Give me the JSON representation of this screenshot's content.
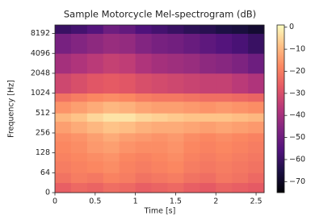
{
  "chart_data": {
    "type": "heatmap",
    "title": "Sample Motorcycle Mel-spectrogram (dB)",
    "x_label": "Time [s]",
    "y_label": "Frequency [Hz]",
    "cmap": "magma",
    "y_scale": "symlog",
    "y_linthresh": 64,
    "x_edges": [
      0,
      0.2,
      0.4,
      0.6,
      0.8,
      1.0,
      1.2,
      1.4,
      1.6,
      1.8,
      2.0,
      2.2,
      2.4,
      2.6
    ],
    "y_edges": [
      0,
      32,
      64,
      96,
      128,
      192,
      256,
      384,
      512,
      768,
      1024,
      2048,
      4096,
      8192,
      11025
    ],
    "values": [
      [
        -26,
        -24,
        -25,
        -23,
        -24,
        -26,
        -25,
        -24,
        -26,
        -27,
        -25,
        -26,
        -27
      ],
      [
        -22,
        -20,
        -21,
        -19,
        -20,
        -22,
        -21,
        -20,
        -22,
        -23,
        -21,
        -22,
        -24
      ],
      [
        -20,
        -19,
        -18,
        -17,
        -19,
        -20,
        -19,
        -18,
        -20,
        -21,
        -20,
        -21,
        -22
      ],
      [
        -19,
        -18,
        -17,
        -16,
        -18,
        -19,
        -18,
        -17,
        -19,
        -20,
        -19,
        -20,
        -21
      ],
      [
        -18,
        -17,
        -15,
        -14,
        -16,
        -17,
        -17,
        -16,
        -18,
        -19,
        -18,
        -19,
        -20
      ],
      [
        -17,
        -16,
        -14,
        -12,
        -14,
        -15,
        -16,
        -15,
        -17,
        -18,
        -17,
        -18,
        -19
      ],
      [
        -14,
        -12,
        -10,
        -8,
        -9,
        -11,
        -12,
        -12,
        -13,
        -14,
        -13,
        -14,
        -15
      ],
      [
        -10,
        -8,
        -5,
        -3,
        -3,
        -5,
        -6,
        -7,
        -8,
        -8,
        -8,
        -9,
        -10
      ],
      [
        -16,
        -14,
        -12,
        -10,
        -11,
        -13,
        -14,
        -14,
        -15,
        -16,
        -15,
        -16,
        -17
      ],
      [
        -22,
        -20,
        -18,
        -17,
        -18,
        -20,
        -21,
        -21,
        -22,
        -23,
        -23,
        -24,
        -25
      ],
      [
        -32,
        -30,
        -28,
        -27,
        -28,
        -30,
        -31,
        -32,
        -33,
        -34,
        -34,
        -36,
        -38
      ],
      [
        -40,
        -38,
        -36,
        -34,
        -35,
        -38,
        -40,
        -41,
        -42,
        -44,
        -45,
        -47,
        -50
      ],
      [
        -48,
        -46,
        -44,
        -42,
        -43,
        -46,
        -48,
        -49,
        -51,
        -53,
        -55,
        -57,
        -60
      ],
      [
        -60,
        -58,
        -55,
        -50,
        -52,
        -56,
        -58,
        -60,
        -62,
        -63,
        -65,
        -66,
        -68
      ]
    ],
    "xlim": [
      0,
      2.6
    ],
    "xticks": [
      0,
      0.5,
      1,
      1.5,
      2,
      2.5
    ],
    "ylim": [
      0,
      11025
    ],
    "yticks": [
      0,
      64,
      128,
      256,
      512,
      1024,
      2048,
      4096,
      8192
    ],
    "clim": [
      -75,
      1
    ],
    "cticks": [
      0,
      {
        "value": -10,
        "label": "−10"
      },
      {
        "value": -20,
        "label": "−20"
      },
      {
        "value": -30,
        "label": "−30"
      },
      {
        "value": -40,
        "label": "−40"
      },
      {
        "value": -50,
        "label": "−50"
      },
      {
        "value": -60,
        "label": "−60"
      },
      {
        "value": -70,
        "label": "−70"
      }
    ]
  }
}
